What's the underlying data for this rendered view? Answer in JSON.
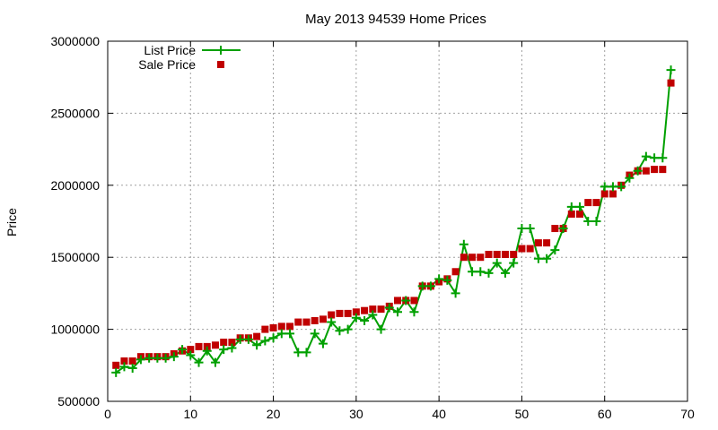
{
  "chart_data": {
    "type": "line",
    "title": "May 2013 94539 Home Prices",
    "xlabel": "",
    "ylabel": "Price",
    "xlim": [
      0,
      70
    ],
    "ylim": [
      500000,
      3000000
    ],
    "x_ticks": [
      0,
      10,
      20,
      30,
      40,
      50,
      60,
      70
    ],
    "y_ticks": [
      500000,
      1000000,
      1500000,
      2000000,
      2500000,
      3000000
    ],
    "grid": true,
    "legend_position": "top-left",
    "x": [
      1,
      2,
      3,
      4,
      5,
      6,
      7,
      8,
      9,
      10,
      11,
      12,
      13,
      14,
      15,
      16,
      17,
      18,
      19,
      20,
      21,
      22,
      23,
      24,
      25,
      26,
      27,
      28,
      29,
      30,
      31,
      32,
      33,
      34,
      35,
      36,
      37,
      38,
      39,
      40,
      41,
      42,
      43,
      44,
      45,
      46,
      47,
      48,
      49,
      50,
      51,
      52,
      53,
      54,
      55,
      56,
      57,
      58,
      59,
      60,
      61,
      62,
      63,
      64,
      65,
      66,
      67,
      68
    ],
    "series": [
      {
        "name": "List Price",
        "style": "line+cross",
        "color": "#00a000",
        "values": [
          700000,
          740000,
          730000,
          790000,
          800000,
          800000,
          800000,
          810000,
          860000,
          820000,
          770000,
          850000,
          770000,
          860000,
          870000,
          930000,
          930000,
          890000,
          920000,
          940000,
          970000,
          970000,
          840000,
          840000,
          970000,
          900000,
          1050000,
          990000,
          1000000,
          1080000,
          1060000,
          1100000,
          1000000,
          1150000,
          1120000,
          1200000,
          1120000,
          1300000,
          1300000,
          1350000,
          1340000,
          1250000,
          1590000,
          1400000,
          1400000,
          1390000,
          1460000,
          1390000,
          1460000,
          1700000,
          1700000,
          1490000,
          1490000,
          1550000,
          1700000,
          1850000,
          1850000,
          1750000,
          1750000,
          1990000,
          1990000,
          1990000,
          2050000,
          2100000,
          2200000,
          2190000,
          2190000,
          2800000
        ]
      },
      {
        "name": "Sale Price",
        "style": "square",
        "color": "#c00000",
        "values": [
          750000,
          780000,
          780000,
          810000,
          810000,
          810000,
          810000,
          830000,
          850000,
          860000,
          880000,
          880000,
          890000,
          910000,
          910000,
          940000,
          940000,
          950000,
          1000000,
          1010000,
          1020000,
          1020000,
          1050000,
          1050000,
          1060000,
          1070000,
          1100000,
          1110000,
          1110000,
          1120000,
          1130000,
          1140000,
          1140000,
          1160000,
          1200000,
          1200000,
          1200000,
          1300000,
          1300000,
          1330000,
          1350000,
          1400000,
          1500000,
          1500000,
          1500000,
          1520000,
          1520000,
          1520000,
          1520000,
          1560000,
          1560000,
          1600000,
          1600000,
          1700000,
          1700000,
          1800000,
          1800000,
          1880000,
          1880000,
          1940000,
          1940000,
          2000000,
          2070000,
          2100000,
          2100000,
          2110000,
          2110000,
          2710000
        ]
      }
    ]
  }
}
